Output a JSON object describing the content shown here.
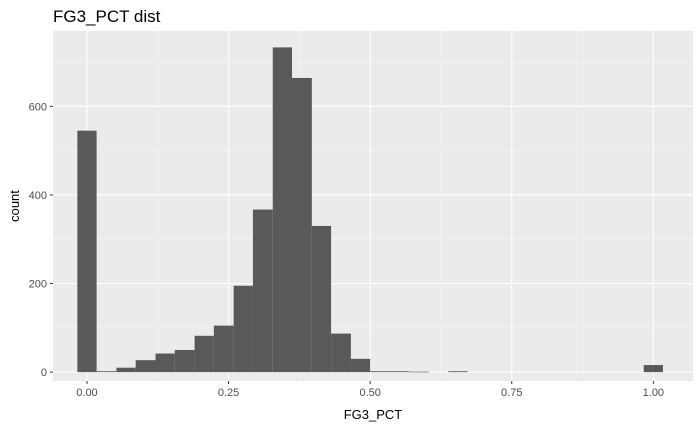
{
  "chart_data": {
    "type": "bar",
    "title": "FG3_PCT dist",
    "xlabel": "FG3_PCT",
    "ylabel": "count",
    "xlim": [
      -0.06,
      1.07
    ],
    "ylim": [
      -20,
      770
    ],
    "xticks": [
      0.0,
      0.25,
      0.5,
      0.75,
      1.0
    ],
    "xtick_labels": [
      "0.00",
      "0.25",
      "0.50",
      "0.75",
      "1.00"
    ],
    "yticks": [
      0,
      200,
      400,
      600
    ],
    "ytick_labels": [
      "0",
      "200",
      "400",
      "600"
    ],
    "grid": true,
    "bin_width": 0.0345,
    "bars": [
      {
        "x0": -0.017,
        "x1": 0.017,
        "count": 545
      },
      {
        "x0": 0.017,
        "x1": 0.052,
        "count": 2
      },
      {
        "x0": 0.052,
        "x1": 0.086,
        "count": 10
      },
      {
        "x0": 0.086,
        "x1": 0.121,
        "count": 27
      },
      {
        "x0": 0.121,
        "x1": 0.155,
        "count": 42
      },
      {
        "x0": 0.155,
        "x1": 0.19,
        "count": 50
      },
      {
        "x0": 0.19,
        "x1": 0.224,
        "count": 82
      },
      {
        "x0": 0.224,
        "x1": 0.259,
        "count": 105
      },
      {
        "x0": 0.259,
        "x1": 0.293,
        "count": 195
      },
      {
        "x0": 0.293,
        "x1": 0.328,
        "count": 367
      },
      {
        "x0": 0.328,
        "x1": 0.362,
        "count": 733
      },
      {
        "x0": 0.362,
        "x1": 0.397,
        "count": 664
      },
      {
        "x0": 0.397,
        "x1": 0.431,
        "count": 330
      },
      {
        "x0": 0.431,
        "x1": 0.466,
        "count": 87
      },
      {
        "x0": 0.466,
        "x1": 0.5,
        "count": 30
      },
      {
        "x0": 0.5,
        "x1": 0.535,
        "count": 2
      },
      {
        "x0": 0.535,
        "x1": 0.569,
        "count": 2
      },
      {
        "x0": 0.569,
        "x1": 0.604,
        "count": 1
      },
      {
        "x0": 0.638,
        "x1": 0.672,
        "count": 2
      },
      {
        "x0": 0.983,
        "x1": 1.017,
        "count": 16
      }
    ],
    "colors": {
      "bar": "#595959",
      "panel": "#ebebeb",
      "grid_major": "#ffffff",
      "grid_minor": "#f5f5f5",
      "tick": "#333333"
    }
  }
}
